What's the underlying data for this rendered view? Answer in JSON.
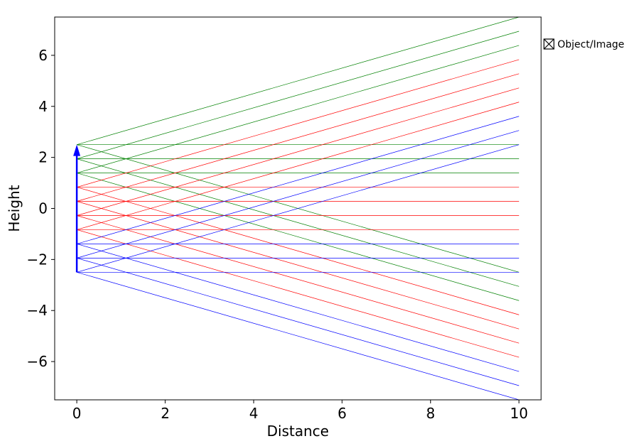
{
  "chart_data": {
    "type": "line",
    "title": "",
    "xlabel": "Distance",
    "ylabel": "Height",
    "xlim": [
      -0.5,
      10.5
    ],
    "ylim": [
      -7.5,
      7.5
    ],
    "xticks": [
      0,
      2,
      4,
      6,
      8,
      10
    ],
    "yticks": [
      -6,
      -4,
      -2,
      0,
      2,
      4,
      6
    ],
    "grid": false,
    "legend": {
      "position": "outside-right-top",
      "entries": [
        {
          "label": "Object/Image",
          "icon": "crossed-box-icon"
        }
      ]
    },
    "object": {
      "x": 0,
      "y_start": -2.5,
      "y_end": 2.5,
      "color": "#0000ff"
    },
    "colors": {
      "top": "#008000",
      "middle": "#ff0000",
      "bottom": "#0000ff"
    },
    "rays": {
      "start_x": 0,
      "end_x": 10,
      "slope_magnitude": 0.5,
      "heights": [
        {
          "y": 2.5,
          "color": "top"
        },
        {
          "y": 1.944,
          "color": "top"
        },
        {
          "y": 1.389,
          "color": "top"
        },
        {
          "y": 0.833,
          "color": "middle"
        },
        {
          "y": 0.278,
          "color": "middle"
        },
        {
          "y": -0.278,
          "color": "middle"
        },
        {
          "y": -0.833,
          "color": "middle"
        },
        {
          "y": -1.389,
          "color": "bottom"
        },
        {
          "y": -1.944,
          "color": "bottom"
        },
        {
          "y": -2.5,
          "color": "bottom"
        }
      ]
    }
  }
}
